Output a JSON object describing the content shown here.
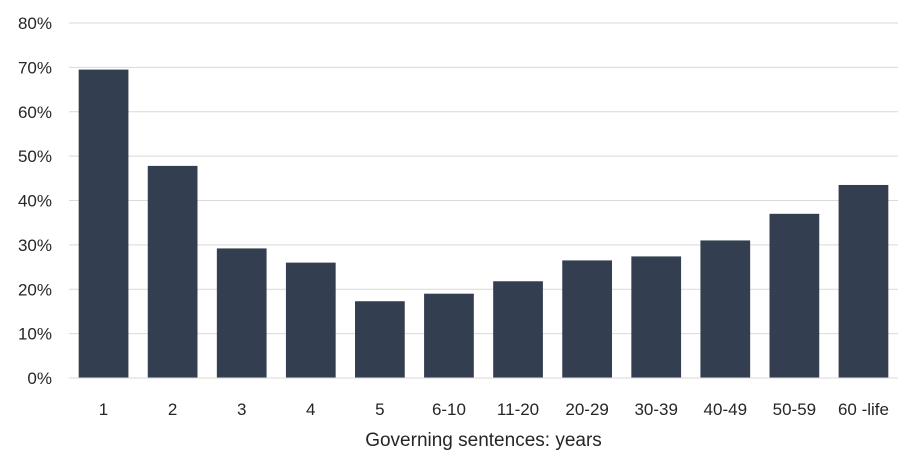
{
  "chart_data": {
    "type": "bar",
    "title": "",
    "xlabel": "Governing sentences: years",
    "ylabel": "",
    "categories": [
      "1",
      "2",
      "3",
      "4",
      "5",
      "6-10",
      "11-20",
      "20-29",
      "30-39",
      "40-49",
      "50-59",
      "60 -life"
    ],
    "values": [
      0.695,
      0.478,
      0.292,
      0.26,
      0.173,
      0.19,
      0.218,
      0.265,
      0.274,
      0.31,
      0.37,
      0.435
    ],
    "ylim": [
      0,
      0.8
    ],
    "yticks": [
      0,
      0.1,
      0.2,
      0.3,
      0.4,
      0.5,
      0.6,
      0.7,
      0.8
    ],
    "ytick_labels": [
      "0%",
      "10%",
      "20%",
      "30%",
      "40%",
      "50%",
      "60%",
      "70%",
      "80%"
    ],
    "grid": true,
    "legend": "none",
    "bar_color": "#333f50"
  }
}
